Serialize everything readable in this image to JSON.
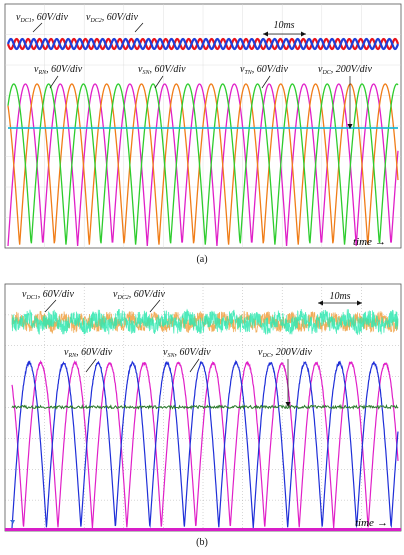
{
  "figure": {
    "caption_a": "(a)",
    "caption_b": "(b)"
  },
  "chart_data": [
    {
      "type": "line",
      "panel": "(a)",
      "description_of_axes": "oscilloscope-style traces; no numeric ticks",
      "time_scale_label": "10ms",
      "x_axis_label": "time →",
      "colors": {
        "vDC1": "#e8141c",
        "vDC2": "#1f3fd8",
        "vRN": "#e020c8",
        "vSN": "#f07d18",
        "vTN": "#2ecc2e",
        "vDC": "#1fb7d8"
      },
      "series": [
        {
          "name": "vDC1",
          "label": "v_DC1, 60V/div",
          "shape": "ripple",
          "cycles": 34
        },
        {
          "name": "vDC2",
          "label": "v_DC2, 60V/div",
          "shape": "ripple",
          "cycles": 34
        },
        {
          "name": "vRN",
          "label": "v_RN, 60V/div",
          "shape": "half-sine",
          "cycles": 5.6,
          "phase_deg": 0
        },
        {
          "name": "vSN",
          "label": "v_SN, 60V/div",
          "shape": "half-sine",
          "cycles": 5.6,
          "phase_deg": 120
        },
        {
          "name": "vTN",
          "label": "v_TN, 60V/div",
          "shape": "half-sine",
          "cycles": 5.6,
          "phase_deg": 240
        },
        {
          "name": "vDC",
          "label": "v_DC, 200V/div",
          "shape": "dc"
        }
      ]
    },
    {
      "type": "line",
      "panel": "(b)",
      "time_scale_label": "10ms",
      "x_axis_label": "time →",
      "colors": {
        "vDC1": "#2fe8b0",
        "vDC2": "#f0a040",
        "vRN": "#1f2fd8",
        "vSN": "#e020c8",
        "vDC": "#2a7a2a"
      },
      "series": [
        {
          "name": "vDC1",
          "label": "v_DC1, 60V/div",
          "shape": "noisy-ripple"
        },
        {
          "name": "vDC2",
          "label": "v_DC2, 60V/div",
          "shape": "noisy-ripple"
        },
        {
          "name": "vRN",
          "label": "v_RN, 60V/div",
          "shape": "half-sine",
          "cycles": 5.6,
          "phase_deg": 0
        },
        {
          "name": "vSN",
          "label": "v_SN, 60V/div",
          "shape": "half-sine",
          "cycles": 5.6,
          "phase_deg": 120
        },
        {
          "name": "vDC",
          "label": "v_DC, 200V/div",
          "shape": "noisy-dc"
        }
      ]
    }
  ],
  "labels_a": {
    "vdc1_sym": "v",
    "vdc1_sub": "DC1",
    "vdc1_rest": ", 60V/div",
    "vdc2_sym": "v",
    "vdc2_sub": "DC2",
    "vdc2_rest": ", 60V/div",
    "vrn_sym": "v",
    "vrn_sub": "RN",
    "vrn_rest": ", 60V/div",
    "vsn_sym": "v",
    "vsn_sub": "SN",
    "vsn_rest": ", 60V/div",
    "vtn_sym": "v",
    "vtn_sub": "TN",
    "vtn_rest": ", 60V/div",
    "vdc_sym": "v",
    "vdc_sub": "DC",
    "vdc_rest": ", 200V/div",
    "timescale": "10ms",
    "time": "time",
    "arrow": "→"
  },
  "labels_b": {
    "vdc1_sym": "v",
    "vdc1_sub": "DC1",
    "vdc1_rest": ", 60V/div",
    "vdc2_sym": "v",
    "vdc2_sub": "DC2",
    "vdc2_rest": ", 60V/div",
    "vrn_sym": "v",
    "vrn_sub": "RN",
    "vrn_rest": ", 60V/div",
    "vsn_sym": "v",
    "vsn_sub": "SN",
    "vsn_rest": ", 60V/div",
    "vdc_sym": "v",
    "vdc_sub": "DC",
    "vdc_rest": ", 200V/div",
    "timescale": "10ms",
    "time": "time",
    "arrow": "→"
  }
}
